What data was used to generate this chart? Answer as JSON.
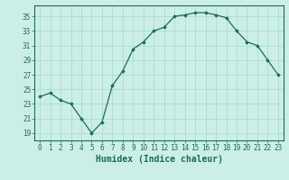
{
  "x": [
    0,
    1,
    2,
    3,
    4,
    5,
    6,
    7,
    8,
    9,
    10,
    11,
    12,
    13,
    14,
    15,
    16,
    17,
    18,
    19,
    20,
    21,
    22,
    23
  ],
  "y": [
    24.0,
    24.5,
    23.5,
    23.0,
    21.0,
    19.0,
    20.5,
    25.5,
    27.5,
    30.5,
    31.5,
    33.0,
    33.5,
    35.0,
    35.2,
    35.5,
    35.5,
    35.2,
    34.8,
    33.0,
    31.5,
    31.0,
    29.0,
    27.0
  ],
  "line_color": "#1a6b5a",
  "marker": "D",
  "marker_size": 1.8,
  "bg_color": "#cceee8",
  "grid_color": "#aaddcc",
  "xlabel": "Humidex (Indice chaleur)",
  "xlim": [
    -0.5,
    23.5
  ],
  "ylim": [
    18.0,
    36.5
  ],
  "yticks": [
    19,
    21,
    23,
    25,
    27,
    29,
    31,
    33,
    35
  ],
  "xticks": [
    0,
    1,
    2,
    3,
    4,
    5,
    6,
    7,
    8,
    9,
    10,
    11,
    12,
    13,
    14,
    15,
    16,
    17,
    18,
    19,
    20,
    21,
    22,
    23
  ],
  "tick_fontsize": 5.5,
  "xlabel_fontsize": 7.0,
  "linewidth": 0.9
}
